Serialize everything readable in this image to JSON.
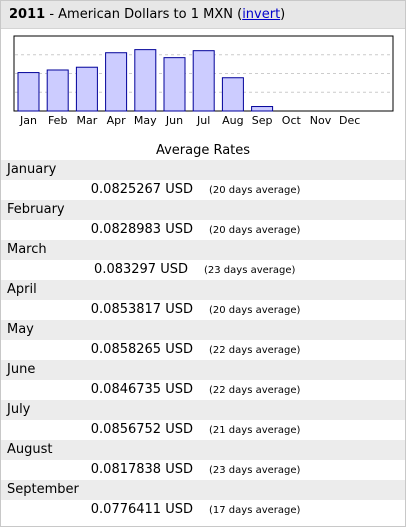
{
  "header": {
    "year": "2011",
    "title": " - American Dollars to 1 MXN (",
    "invert_label": "invert",
    "close_paren": ")"
  },
  "chart_data": {
    "type": "bar",
    "categories": [
      "Jan",
      "Feb",
      "Mar",
      "Apr",
      "May",
      "Jun",
      "Jul",
      "Aug",
      "Sep",
      "Oct",
      "Nov",
      "Dec"
    ],
    "values": [
      0.0825267,
      0.0828983,
      0.083297,
      0.0853817,
      0.0858265,
      0.0846735,
      0.0856752,
      0.0817838,
      0.0776411,
      null,
      null,
      null
    ],
    "title": "",
    "xlabel": "",
    "ylabel": "",
    "colors": {
      "bar_fill": "#ccccff",
      "bar_stroke": "#000099",
      "grid": "#cccccc"
    }
  },
  "section_title": "Average Rates",
  "rates": [
    {
      "month": "January",
      "value": "0.0825267 USD",
      "avg": "(20 days average)"
    },
    {
      "month": "February",
      "value": "0.0828983 USD",
      "avg": "(20 days average)"
    },
    {
      "month": "March",
      "value": "0.083297 USD",
      "avg": "(23 days average)"
    },
    {
      "month": "April",
      "value": "0.0853817 USD",
      "avg": "(20 days average)"
    },
    {
      "month": "May",
      "value": "0.0858265 USD",
      "avg": "(22 days average)"
    },
    {
      "month": "June",
      "value": "0.0846735 USD",
      "avg": "(22 days average)"
    },
    {
      "month": "July",
      "value": "0.0856752 USD",
      "avg": "(21 days average)"
    },
    {
      "month": "August",
      "value": "0.0817838 USD",
      "avg": "(23 days average)"
    },
    {
      "month": "September",
      "value": "0.0776411 USD",
      "avg": "(17 days average)"
    }
  ]
}
